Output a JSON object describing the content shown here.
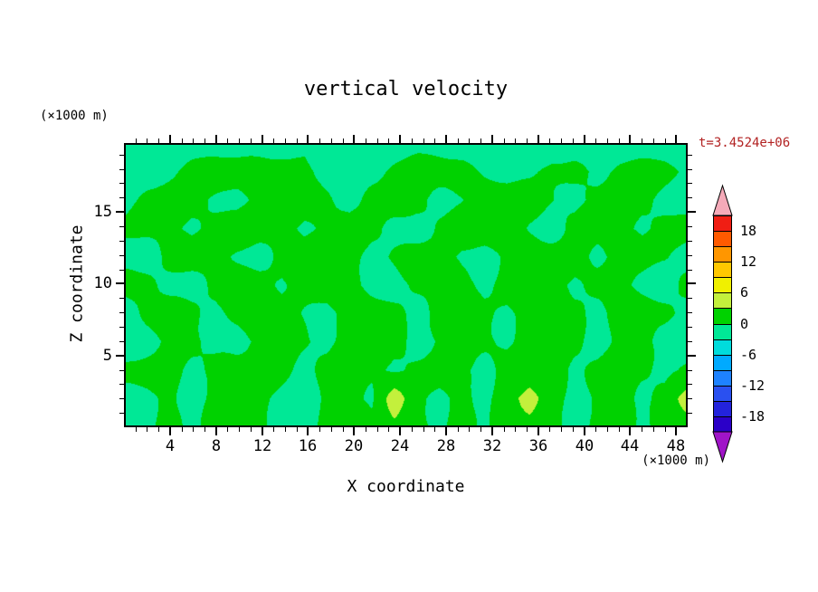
{
  "chart_data": {
    "type": "heatmap",
    "title": "vertical velocity",
    "annotation": "t=3.4524e+06",
    "annotation_color": "#B22222",
    "xlabel": "X coordinate",
    "ylabel": "Z coordinate",
    "x_unit_label": "(×1000 m)",
    "y_unit_label": "(×1000 m)",
    "xlim": [
      0,
      49
    ],
    "ylim": [
      0,
      19.8
    ],
    "x_ticks": [
      4,
      8,
      12,
      16,
      20,
      24,
      28,
      32,
      36,
      40,
      44,
      48
    ],
    "y_ticks": [
      5,
      10,
      15
    ],
    "grid": false,
    "legend_position": "right",
    "colorbar": {
      "tick_values": [
        18,
        12,
        6,
        0,
        -6,
        -12,
        -18
      ],
      "levels": [
        -21,
        -18,
        -15,
        -12,
        -9,
        -6,
        -3,
        0,
        3,
        6,
        9,
        12,
        15,
        18,
        21
      ],
      "cell_colors": [
        "#2B00C8",
        "#2323DC",
        "#2A50F0",
        "#1E82FF",
        "#00AAFF",
        "#00DCDC",
        "#00E896",
        "#00D200",
        "#C3F03C",
        "#F0F000",
        "#FFC800",
        "#FF9600",
        "#FF5A00",
        "#F01E14"
      ],
      "under_color": "#A014C8",
      "over_color": "#F5AAB9"
    },
    "field": {
      "cols": 26,
      "rows": 11,
      "x_range": [
        0,
        50
      ],
      "z_range": [
        0,
        19.8
      ],
      "values": [
        [
          -1.2,
          -1.0,
          -1.2,
          -1.1,
          -0.8,
          -1.2,
          -1.0,
          -1.3,
          -0.6,
          -1.2,
          -1.1,
          -0.9,
          -1.2,
          -1.0,
          -1.2,
          -1.1,
          -1.2,
          -0.8,
          -1.2,
          -1.0,
          -1.2,
          -1.1,
          -0.9,
          -1.2,
          -1.0,
          -1.2
        ],
        [
          -1.0,
          -0.8,
          -0.4,
          0.6,
          1.2,
          1.0,
          0.8,
          1.1,
          0.6,
          -0.5,
          -1.0,
          -0.6,
          0.4,
          0.9,
          1.1,
          0.7,
          -0.4,
          -0.9,
          -0.5,
          0.5,
          0.8,
          -0.3,
          0.7,
          1.0,
          0.6,
          -0.6
        ],
        [
          -0.8,
          0.5,
          1.0,
          0.8,
          -0.3,
          -0.9,
          0.6,
          1.2,
          0.9,
          0.4,
          -0.6,
          0.7,
          1.0,
          0.5,
          -0.8,
          -0.4,
          0.8,
          1.1,
          0.9,
          0.3,
          -0.7,
          0.5,
          0.9,
          0.7,
          -0.5,
          -0.9
        ],
        [
          0.4,
          0.9,
          0.6,
          -0.5,
          0.7,
          1.3,
          1.0,
          0.6,
          -0.4,
          0.8,
          1.1,
          0.7,
          -0.6,
          -1.0,
          0.5,
          1.0,
          1.2,
          0.8,
          -0.5,
          -0.9,
          0.6,
          1.0,
          0.7,
          -0.4,
          0.8,
          0.5
        ],
        [
          -0.6,
          -1.0,
          0.6,
          1.1,
          0.8,
          -0.4,
          -0.9,
          0.5,
          1.0,
          1.2,
          0.7,
          -0.5,
          0.6,
          1.1,
          0.8,
          -0.6,
          -1.0,
          0.4,
          0.9,
          1.1,
          0.6,
          -0.5,
          0.8,
          1.0,
          0.5,
          -0.7
        ],
        [
          0.5,
          0.9,
          -0.4,
          -0.8,
          0.6,
          1.0,
          0.7,
          -0.5,
          0.8,
          1.2,
          0.6,
          -0.6,
          -1.0,
          0.5,
          1.0,
          0.8,
          -0.4,
          0.7,
          1.1,
          0.5,
          -0.6,
          0.9,
          0.6,
          -0.5,
          -0.9,
          0.4
        ],
        [
          -0.7,
          0.5,
          0.9,
          0.6,
          -0.5,
          0.7,
          1.1,
          0.8,
          -0.4,
          -0.9,
          0.6,
          1.0,
          0.7,
          -0.5,
          0.8,
          1.2,
          0.5,
          -0.6,
          0.9,
          1.0,
          0.4,
          -0.7,
          0.6,
          1.0,
          0.7,
          -0.5
        ],
        [
          -1.0,
          -0.6,
          0.5,
          0.8,
          -0.5,
          -0.9,
          0.6,
          0.9,
          0.4,
          -0.6,
          0.7,
          1.0,
          0.5,
          -0.7,
          0.4,
          0.8,
          0.6,
          -0.5,
          0.6,
          0.9,
          0.5,
          -0.8,
          0.4,
          0.7,
          -0.6,
          -1.0
        ],
        [
          0.4,
          0.8,
          0.6,
          -0.5,
          0.6,
          1.0,
          0.8,
          0.4,
          -0.6,
          0.5,
          0.9,
          0.6,
          -0.5,
          0.7,
          1.0,
          0.5,
          -0.6,
          0.6,
          1.0,
          0.7,
          -0.5,
          0.5,
          0.8,
          0.6,
          -0.6,
          0.5
        ],
        [
          -1.0,
          -0.6,
          0.4,
          -0.8,
          0.6,
          1.4,
          0.5,
          -0.7,
          -1.1,
          0.5,
          0.9,
          -0.6,
          4.6,
          0.6,
          -0.8,
          1.0,
          -0.5,
          1.5,
          4.6,
          0.7,
          -0.9,
          0.4,
          1.2,
          -0.6,
          0.8,
          4.2
        ],
        [
          -1.2,
          -0.8,
          0.6,
          -0.6,
          0.8,
          1.8,
          0.7,
          -0.9,
          -1.2,
          0.7,
          1.2,
          0.5,
          2.2,
          0.8,
          -0.9,
          1.3,
          -0.6,
          1.8,
          2.2,
          0.9,
          -1.0,
          0.6,
          1.6,
          -0.7,
          1.0,
          2.0
        ]
      ]
    }
  }
}
